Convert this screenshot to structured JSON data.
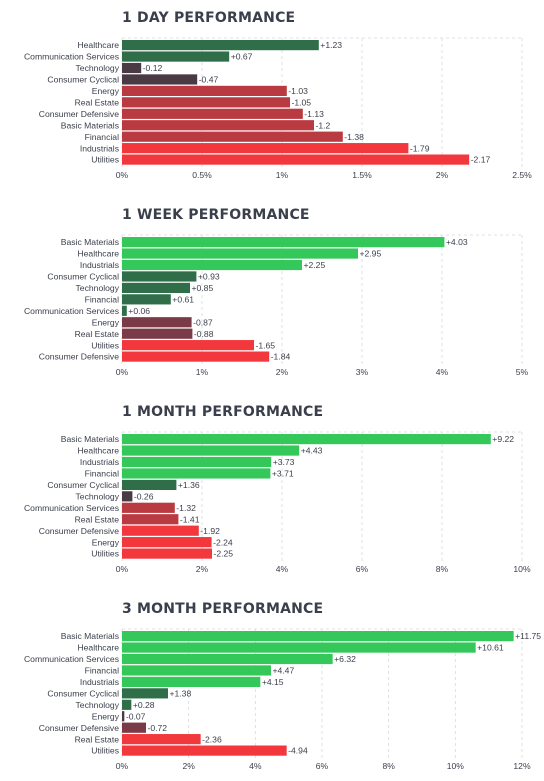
{
  "colors": {
    "pos_strong": "#34c759",
    "pos_mid": "#2ea84f",
    "pos_weak": "#2f6e48",
    "neg_weak": "#4a3a44",
    "neg_mid": "#7a3a46",
    "neg_strong": "#b93a40",
    "neg_max": "#f2383d",
    "grid": "#d7d9de",
    "text": "#3a3f4b"
  },
  "chart_data": [
    {
      "type": "bar",
      "title": "1 DAY PERFORMANCE",
      "categories": [
        "Healthcare",
        "Communication Services",
        "Technology",
        "Consumer Cyclical",
        "Energy",
        "Real Estate",
        "Consumer Defensive",
        "Basic Materials",
        "Financial",
        "Industrials",
        "Utilities"
      ],
      "values": [
        1.23,
        0.67,
        -0.12,
        -0.47,
        -1.03,
        -1.05,
        -1.13,
        -1.2,
        -1.38,
        -1.79,
        -2.17
      ],
      "value_labels": [
        "+1.23",
        "+0.67",
        "-0.12",
        "-0.47",
        "-1.03",
        "-1.05",
        "-1.13",
        "-1.2",
        "-1.38",
        "-1.79",
        "-2.17"
      ],
      "ticks": [
        "0%",
        "0.5%",
        "1%",
        "1.5%",
        "2%",
        "2.5%"
      ],
      "xlim": [
        0,
        2.5
      ],
      "bar_length": "absolute value",
      "grid": true
    },
    {
      "type": "bar",
      "title": "1 WEEK PERFORMANCE",
      "categories": [
        "Basic Materials",
        "Healthcare",
        "Industrials",
        "Consumer Cyclical",
        "Technology",
        "Financial",
        "Communication Services",
        "Energy",
        "Real Estate",
        "Utilities",
        "Consumer Defensive"
      ],
      "values": [
        4.03,
        2.95,
        2.25,
        0.93,
        0.85,
        0.61,
        0.06,
        -0.87,
        -0.88,
        -1.65,
        -1.84
      ],
      "value_labels": [
        "+4.03",
        "+2.95",
        "+2.25",
        "+0.93",
        "+0.85",
        "+0.61",
        "+0.06",
        "-0.87",
        "-0.88",
        "-1.65",
        "-1.84"
      ],
      "ticks": [
        "0%",
        "1%",
        "2%",
        "3%",
        "4%",
        "5%"
      ],
      "xlim": [
        0,
        5
      ],
      "bar_length": "absolute value",
      "grid": true
    },
    {
      "type": "bar",
      "title": "1 MONTH PERFORMANCE",
      "categories": [
        "Basic Materials",
        "Healthcare",
        "Industrials",
        "Financial",
        "Consumer Cyclical",
        "Technology",
        "Communication Services",
        "Real Estate",
        "Consumer Defensive",
        "Energy",
        "Utilities"
      ],
      "values": [
        9.22,
        4.43,
        3.73,
        3.71,
        1.36,
        -0.26,
        -1.32,
        -1.41,
        -1.92,
        -2.24,
        -2.25
      ],
      "value_labels": [
        "+9.22",
        "+4.43",
        "+3.73",
        "+3.71",
        "+1.36",
        "-0.26",
        "-1.32",
        "-1.41",
        "-1.92",
        "-2.24",
        "-2.25"
      ],
      "ticks": [
        "0%",
        "2%",
        "4%",
        "6%",
        "8%",
        "10%"
      ],
      "xlim": [
        0,
        10
      ],
      "bar_length": "absolute value",
      "grid": true
    },
    {
      "type": "bar",
      "title": "3 MONTH PERFORMANCE",
      "categories": [
        "Basic Materials",
        "Healthcare",
        "Communication Services",
        "Financial",
        "Industrials",
        "Consumer Cyclical",
        "Technology",
        "Energy",
        "Consumer Defensive",
        "Real Estate",
        "Utilities"
      ],
      "values": [
        11.75,
        10.61,
        6.32,
        4.47,
        4.15,
        1.38,
        0.28,
        -0.07,
        -0.72,
        -2.36,
        -4.94
      ],
      "value_labels": [
        "+11.75",
        "+10.61",
        "+6.32",
        "+4.47",
        "+4.15",
        "+1.38",
        "+0.28",
        "-0.07",
        "-0.72",
        "-2.36",
        "-4.94"
      ],
      "ticks": [
        "0%",
        "2%",
        "4%",
        "6%",
        "8%",
        "10%",
        "12%"
      ],
      "xlim": [
        0,
        12
      ],
      "bar_length": "absolute value",
      "grid": true
    }
  ]
}
